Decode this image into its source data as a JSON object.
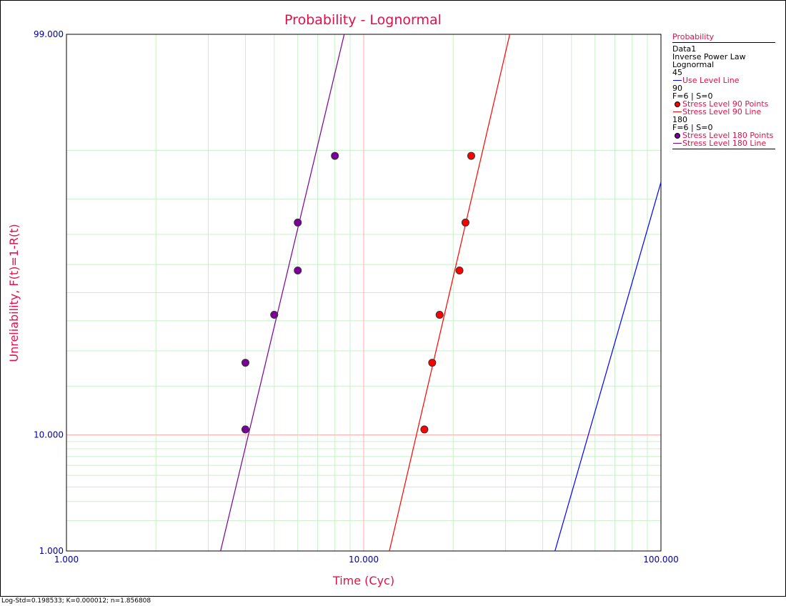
{
  "chart_data": {
    "type": "scatter",
    "title": "Probability - Lognormal",
    "xlabel": "Time (Cyc)",
    "ylabel": "Unreliability, F(t)=1-R(t)",
    "x_scale": "log",
    "y_scale": "lognormal-probability",
    "xlim": [
      1,
      100
    ],
    "ylim": [
      1,
      99
    ],
    "x_ticks": [
      "1.000",
      "10.000",
      "100.000"
    ],
    "y_ticks": [
      "1.000",
      "10.000",
      "99.000"
    ],
    "grid": true,
    "legend_position": "right",
    "series": [
      {
        "name": "Stress Level 90 Points",
        "stress": "90",
        "color": "#ff0000",
        "points": [
          {
            "x": 16.0,
            "y": 10.9
          },
          {
            "x": 17.0,
            "y": 26.4
          },
          {
            "x": 18.0,
            "y": 42.1
          },
          {
            "x": 21.0,
            "y": 57.9
          },
          {
            "x": 22.0,
            "y": 73.6
          },
          {
            "x": 23.0,
            "y": 89.1
          }
        ]
      },
      {
        "name": "Stress Level 180 Points",
        "stress": "180",
        "color": "#7a0099",
        "points": [
          {
            "x": 4.0,
            "y": 10.9
          },
          {
            "x": 4.0,
            "y": 26.4
          },
          {
            "x": 5.0,
            "y": 42.1
          },
          {
            "x": 6.0,
            "y": 57.9
          },
          {
            "x": 6.0,
            "y": 73.6
          },
          {
            "x": 8.0,
            "y": 89.1
          }
        ]
      }
    ],
    "lines": [
      {
        "name": "Use Level Line",
        "stress": "45",
        "color": "#0000ff",
        "points": [
          {
            "x": 44.0,
            "y": 1.0
          },
          {
            "x": 100.0,
            "y": 84.0
          }
        ]
      },
      {
        "name": "Stress Level 90 Line",
        "stress": "90",
        "color": "#ff0000",
        "points": [
          {
            "x": 12.2,
            "y": 1.0
          },
          {
            "x": 31.0,
            "y": 99.0
          }
        ]
      },
      {
        "name": "Stress Level 180 Line",
        "stress": "180",
        "color": "#7a0099",
        "points": [
          {
            "x": 3.3,
            "y": 1.0
          },
          {
            "x": 8.6,
            "y": 99.0
          }
        ]
      }
    ]
  },
  "legend": {
    "title": "Probability",
    "data_name": "Data1",
    "model": "Inverse Power Law",
    "distribution": "Lognormal",
    "groups": [
      {
        "stress": "45",
        "items": [
          {
            "kind": "line",
            "color": "#0000ff",
            "label": "Use Level Line"
          }
        ]
      },
      {
        "stress": "90",
        "info": "F=6 | S=0",
        "items": [
          {
            "kind": "point",
            "color": "#ff0000",
            "label": "Stress Level 90 Points"
          },
          {
            "kind": "line",
            "color": "#ff0000",
            "label": "Stress Level 90 Line"
          }
        ]
      },
      {
        "stress": "180",
        "info": "F=6 | S=0",
        "items": [
          {
            "kind": "point",
            "color": "#7a0099",
            "label": "Stress Level 180 Points"
          },
          {
            "kind": "line",
            "color": "#7a0099",
            "label": "Stress Level 180 Line"
          }
        ]
      }
    ]
  },
  "status": "Log-Std=0.198533; K=0.000012; n=1.856808",
  "colors": {
    "title": "#e0104a",
    "tick": "#0000a0",
    "grid": "#c8f0c8",
    "major_grid": "#ffaaaa"
  }
}
